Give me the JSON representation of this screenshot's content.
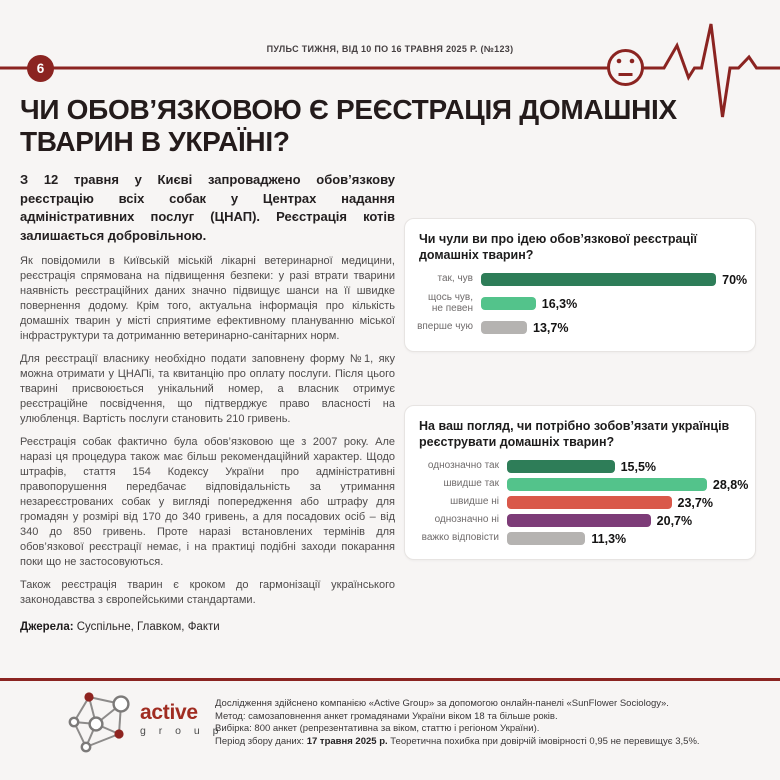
{
  "page": {
    "number": "6",
    "accent_color": "#8b2421",
    "background_color": "#f7f5f4"
  },
  "header": {
    "masthead": "ПУЛЬС ТИЖНЯ, ВІД 10 ПО 16 ТРАВНЯ 2025 Р. (№123)"
  },
  "title": "ЧИ ОБОВ’ЯЗКОВОЮ Є РЕЄСТРАЦІЯ ДОМАШНІХ ТВАРИН В УКРАЇНІ?",
  "article": {
    "lead": "З 12 травня у Києві запроваджено обов’язкову реєстрацію всіх собак у Центрах надання адміністративних послуг (ЦНАП). Реєстрація котів залишається добровільною.",
    "paragraphs": [
      "Як повідомили в Київській міській лікарні ветеринарної медицини, реєстрація спрямована на підвищення безпеки: у разі втрати тварини наявність реєстраційних даних значно підвищує шанси на її швидке повернення додому. Крім того, актуальна інформація про кількість домашніх тварин у місті сприятиме ефективному плануванню міської інфраструктури та дотриманню ветеринарно-санітарних норм.",
      "Для реєстрації власнику необхідно подати заповнену форму №1, яку можна отримати у ЦНАПі, та квитанцію про оплату послуги. Після цього тварині присвоюється унікальний номер, а власник отримує реєстраційне посвідчення, що підтверджує право власності на улюбленця. Вартість послуги становить 210 гривень.",
      "Реєстрація собак фактично була обов’язковою ще з 2007 року. Але наразі ця процедура також має більш рекомендаційний характер. Щодо штрафів, стаття 154 Кодексу України про адміністративні правопорушення передбачає відповідальність за утримання незареєстрованих собак у вигляді попередження або штрафу для громадян у розмірі від 170 до 340 гривень, а для посадових осіб – від 340 до 850 гривень. Проте наразі встановлених термінів для обов’язкової реєстрації немає, і на практиці подібні заходи покарання поки що не застосовуються.",
      "Також реєстрація тварин є кроком до гармонізації українського законодавства з європейськими стандартами."
    ],
    "sources_label": "Джерела:",
    "sources_text": " Суспільне, Главком, Факти"
  },
  "chart_data": [
    {
      "type": "bar",
      "orientation": "horizontal",
      "title": "Чи чули ви про ідею обов’язкової реєстрації домашніх тварин?",
      "categories": [
        "так, чув",
        "щось чув, не певен",
        "вперше чую"
      ],
      "values": [
        70,
        16.3,
        13.7
      ],
      "value_labels": [
        "70%",
        "16,3%",
        "13,7%"
      ],
      "colors": [
        "#2e7d58",
        "#53c38b",
        "#b5b3b1"
      ],
      "xlim": [
        0,
        78
      ],
      "grid": false,
      "legend": "none"
    },
    {
      "type": "bar",
      "orientation": "horizontal",
      "title": "На ваш погляд, чи потрібно зобов’язати українців реєструвати домашніх тварин?",
      "categories": [
        "однозначно так",
        "швидше так",
        "швидше ні",
        "однозначно ні",
        "важко відповісти"
      ],
      "values": [
        15.5,
        28.8,
        23.7,
        20.7,
        11.3
      ],
      "value_labels": [
        "15,5%",
        "28,8%",
        "23,7%",
        "20,7%",
        "11,3%"
      ],
      "colors": [
        "#2e7d58",
        "#53c38b",
        "#d9584a",
        "#7d3c78",
        "#b5b3b1"
      ],
      "xlim": [
        0,
        34
      ],
      "grid": false,
      "legend": "none"
    }
  ],
  "footer": {
    "logo_word": "active",
    "logo_sub": "g r o u p",
    "lines": [
      {
        "text": "Дослідження здійснено компанією «Active Group» за допомогою онлайн-панелі «SunFlower Sociology»."
      },
      {
        "text": "Метод: самозаповнення анкет громадянами України віком 18 та більше років."
      },
      {
        "text": "Вибірка: 800 анкет (репрезентативна за віком, статтю і регіоном України)."
      },
      {
        "pre": "Період збору даних: ",
        "bold": "17 травня 2025 р.",
        "post": " Теоретична похибка при довірчій імовірності 0,95 не перевищує 3,5%."
      }
    ]
  }
}
